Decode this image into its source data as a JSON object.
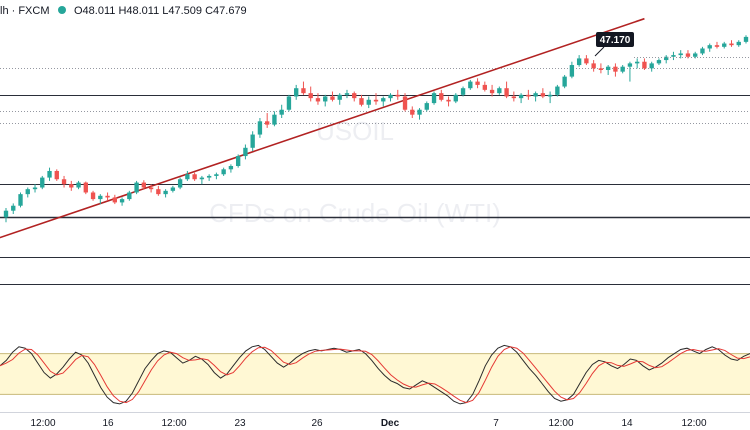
{
  "header": {
    "symbol_fragment": "lh · FXCM",
    "ohlc": "O48.011 H48.011 L47.509 C47.679"
  },
  "watermark": {
    "line1": "USOIL",
    "line2": "CFDs on Crude Oil (WTI)"
  },
  "colors": {
    "bull": "#26a69a",
    "bear": "#ef5350",
    "trendline": "#b22222",
    "stoch_k": "#2b2b2b",
    "stoch_d": "#e53935",
    "stoch_band": "#fff8d4",
    "stoch_band_edge": "#c8b97a",
    "price_tag_bg": "#131722",
    "marker_dot": "#26a69a"
  },
  "price_tag": "47.170",
  "chart_data": {
    "type": "candlestick",
    "symbol": "USOIL",
    "broker": "FXCM",
    "timeframe_note": "intraday",
    "x_labels": [
      "12:00",
      "16",
      "12:00",
      "23",
      "26",
      "Dec",
      "7",
      "12:00",
      "14",
      "12:00"
    ],
    "candles": [
      [
        44.2,
        44.48,
        44.05,
        44.4
      ],
      [
        44.4,
        44.62,
        44.3,
        44.55
      ],
      [
        44.55,
        44.95,
        44.5,
        44.9
      ],
      [
        44.9,
        45.1,
        44.8,
        45.05
      ],
      [
        45.05,
        45.2,
        44.95,
        45.1
      ],
      [
        45.1,
        45.45,
        45.05,
        45.4
      ],
      [
        45.4,
        45.7,
        45.3,
        45.6
      ],
      [
        45.6,
        45.65,
        45.3,
        45.35
      ],
      [
        45.35,
        45.45,
        45.1,
        45.2
      ],
      [
        45.2,
        45.3,
        45.0,
        45.1
      ],
      [
        45.1,
        45.3,
        45.05,
        45.25
      ],
      [
        45.25,
        45.28,
        44.9,
        44.95
      ],
      [
        44.95,
        45.0,
        44.7,
        44.75
      ],
      [
        44.75,
        44.9,
        44.6,
        44.85
      ],
      [
        44.85,
        44.95,
        44.7,
        44.8
      ],
      [
        44.8,
        44.88,
        44.6,
        44.65
      ],
      [
        44.65,
        44.8,
        44.55,
        44.75
      ],
      [
        44.75,
        45.0,
        44.7,
        44.95
      ],
      [
        44.95,
        45.3,
        44.9,
        45.25
      ],
      [
        45.25,
        45.32,
        45.05,
        45.1
      ],
      [
        45.1,
        45.2,
        44.95,
        45.05
      ],
      [
        45.05,
        45.15,
        44.85,
        44.9
      ],
      [
        44.9,
        45.05,
        44.8,
        45.0
      ],
      [
        45.0,
        45.15,
        44.95,
        45.1
      ],
      [
        45.1,
        45.4,
        45.05,
        45.35
      ],
      [
        45.35,
        45.6,
        45.3,
        45.5
      ],
      [
        45.5,
        45.55,
        45.3,
        45.35
      ],
      [
        45.35,
        45.45,
        45.2,
        45.4
      ],
      [
        45.4,
        45.5,
        45.3,
        45.45
      ],
      [
        45.45,
        45.55,
        45.35,
        45.5
      ],
      [
        45.5,
        45.7,
        45.45,
        45.65
      ],
      [
        45.65,
        45.8,
        45.55,
        45.75
      ],
      [
        45.75,
        46.1,
        45.7,
        46.05
      ],
      [
        46.05,
        46.4,
        45.95,
        46.3
      ],
      [
        46.3,
        46.8,
        46.2,
        46.7
      ],
      [
        46.7,
        47.2,
        46.6,
        47.1
      ],
      [
        47.1,
        47.35,
        46.9,
        47.0
      ],
      [
        47.0,
        47.4,
        46.95,
        47.3
      ],
      [
        47.3,
        47.6,
        47.2,
        47.45
      ],
      [
        47.45,
        47.9,
        47.4,
        47.85
      ],
      [
        47.85,
        48.2,
        47.75,
        48.1
      ],
      [
        48.1,
        48.3,
        47.9,
        47.95
      ],
      [
        47.95,
        48.15,
        47.7,
        47.8
      ],
      [
        47.8,
        47.95,
        47.6,
        47.7
      ],
      [
        47.7,
        47.9,
        47.55,
        47.85
      ],
      [
        47.85,
        48.0,
        47.7,
        47.75
      ],
      [
        47.75,
        47.95,
        47.6,
        47.9
      ],
      [
        47.9,
        48.05,
        47.8,
        47.95
      ],
      [
        47.95,
        48.0,
        47.7,
        47.8
      ],
      [
        47.8,
        47.9,
        47.55,
        47.6
      ],
      [
        47.6,
        47.85,
        47.5,
        47.75
      ],
      [
        47.75,
        47.95,
        47.6,
        47.7
      ],
      [
        47.7,
        47.85,
        47.55,
        47.8
      ],
      [
        47.8,
        47.95,
        47.7,
        47.9
      ],
      [
        47.9,
        48.05,
        47.75,
        47.85
      ],
      [
        47.85,
        47.95,
        47.4,
        47.45
      ],
      [
        47.45,
        47.55,
        47.2,
        47.3
      ],
      [
        47.3,
        47.5,
        47.15,
        47.45
      ],
      [
        47.45,
        47.7,
        47.4,
        47.65
      ],
      [
        47.65,
        48.0,
        47.6,
        47.95
      ],
      [
        47.95,
        48.05,
        47.7,
        47.75
      ],
      [
        47.75,
        47.85,
        47.55,
        47.7
      ],
      [
        47.7,
        47.95,
        47.65,
        47.9
      ],
      [
        47.9,
        48.15,
        47.85,
        48.1
      ],
      [
        48.1,
        48.35,
        48.05,
        48.3
      ],
      [
        48.3,
        48.4,
        48.1,
        48.2
      ],
      [
        48.2,
        48.3,
        48.0,
        48.05
      ],
      [
        48.05,
        48.2,
        47.85,
        47.95
      ],
      [
        47.95,
        48.15,
        47.9,
        48.1
      ],
      [
        48.1,
        48.3,
        47.8,
        47.85
      ],
      [
        47.85,
        48.0,
        47.7,
        47.8
      ],
      [
        47.8,
        47.95,
        47.65,
        47.9
      ],
      [
        47.9,
        48.05,
        47.75,
        47.85
      ],
      [
        47.85,
        48.0,
        47.7,
        47.95
      ],
      [
        47.95,
        48.1,
        47.8,
        47.85
      ],
      [
        47.85,
        48.0,
        47.65,
        47.9
      ],
      [
        47.9,
        48.2,
        47.85,
        48.15
      ],
      [
        48.15,
        48.5,
        48.1,
        48.45
      ],
      [
        48.45,
        48.9,
        48.4,
        48.8
      ],
      [
        48.8,
        49.1,
        48.75,
        49.0
      ],
      [
        49.0,
        49.1,
        48.8,
        48.85
      ],
      [
        48.85,
        48.95,
        48.6,
        48.7
      ],
      [
        48.7,
        48.85,
        48.55,
        48.65
      ],
      [
        48.65,
        48.8,
        48.5,
        48.75
      ],
      [
        48.75,
        48.85,
        48.45,
        48.6
      ],
      [
        48.6,
        48.8,
        48.55,
        48.75
      ],
      [
        48.75,
        48.9,
        48.3,
        48.85
      ],
      [
        48.85,
        49.0,
        48.7,
        48.9
      ],
      [
        48.9,
        49.0,
        48.65,
        48.7
      ],
      [
        48.7,
        48.9,
        48.6,
        48.85
      ],
      [
        48.85,
        49.0,
        48.8,
        48.95
      ],
      [
        48.95,
        49.1,
        48.85,
        49.05
      ],
      [
        49.05,
        49.2,
        48.95,
        49.1
      ],
      [
        49.1,
        49.25,
        49.0,
        49.15
      ],
      [
        49.15,
        49.25,
        49.0,
        49.05
      ],
      [
        49.05,
        49.2,
        49.0,
        49.15
      ],
      [
        49.15,
        49.35,
        49.1,
        49.3
      ],
      [
        49.3,
        49.45,
        49.2,
        49.4
      ],
      [
        49.4,
        49.5,
        49.3,
        49.35
      ],
      [
        49.35,
        49.5,
        49.3,
        49.45
      ],
      [
        49.45,
        49.55,
        49.35,
        49.4
      ],
      [
        49.4,
        49.55,
        49.35,
        49.5
      ],
      [
        49.5,
        49.7,
        49.45,
        49.65
      ]
    ],
    "horizontal_levels": [
      {
        "value": 47.9,
        "style": "solid",
        "width": 1
      },
      {
        "value": 47.4,
        "style": "dotted",
        "width": 1
      },
      {
        "value": 47.05,
        "style": "dotted",
        "width": 1
      },
      {
        "value": 45.2,
        "style": "solid",
        "width": 1
      },
      {
        "value": 44.2,
        "style": "solid",
        "width": 1.6
      },
      {
        "value": 43.0,
        "style": "solid",
        "width": 1
      },
      {
        "value": 42.2,
        "style": "solid",
        "width": 1
      },
      {
        "value": 48.7,
        "style": "dotted",
        "width": 1
      }
    ],
    "trendline": {
      "from_index": -2,
      "from_price": 43.5,
      "to_index": 88,
      "to_price": 50.2
    },
    "ylim": [
      41.4,
      50.1
    ],
    "stochastic": {
      "range": [
        0,
        100
      ],
      "band": [
        20,
        80
      ],
      "k": [
        62,
        70,
        82,
        90,
        88,
        80,
        66,
        52,
        44,
        50,
        60,
        72,
        82,
        78,
        66,
        48,
        30,
        16,
        8,
        6,
        10,
        22,
        40,
        58,
        70,
        80,
        84,
        82,
        74,
        66,
        70,
        76,
        72,
        64,
        52,
        44,
        50,
        62,
        74,
        84,
        90,
        92,
        86,
        76,
        66,
        60,
        66,
        74,
        80,
        84,
        86,
        84,
        86,
        88,
        86,
        82,
        84,
        86,
        80,
        70,
        58,
        48,
        40,
        36,
        30,
        28,
        34,
        40,
        36,
        30,
        24,
        18,
        10,
        6,
        8,
        20,
        40,
        62,
        78,
        88,
        92,
        90,
        82,
        70,
        58,
        48,
        36,
        24,
        14,
        10,
        12,
        20,
        36,
        52,
        64,
        70,
        68,
        62,
        58,
        64,
        72,
        70,
        62,
        56,
        60,
        66,
        74,
        80,
        86,
        88,
        84,
        80,
        86,
        90,
        86,
        78,
        72,
        70,
        76,
        80
      ]
    }
  }
}
